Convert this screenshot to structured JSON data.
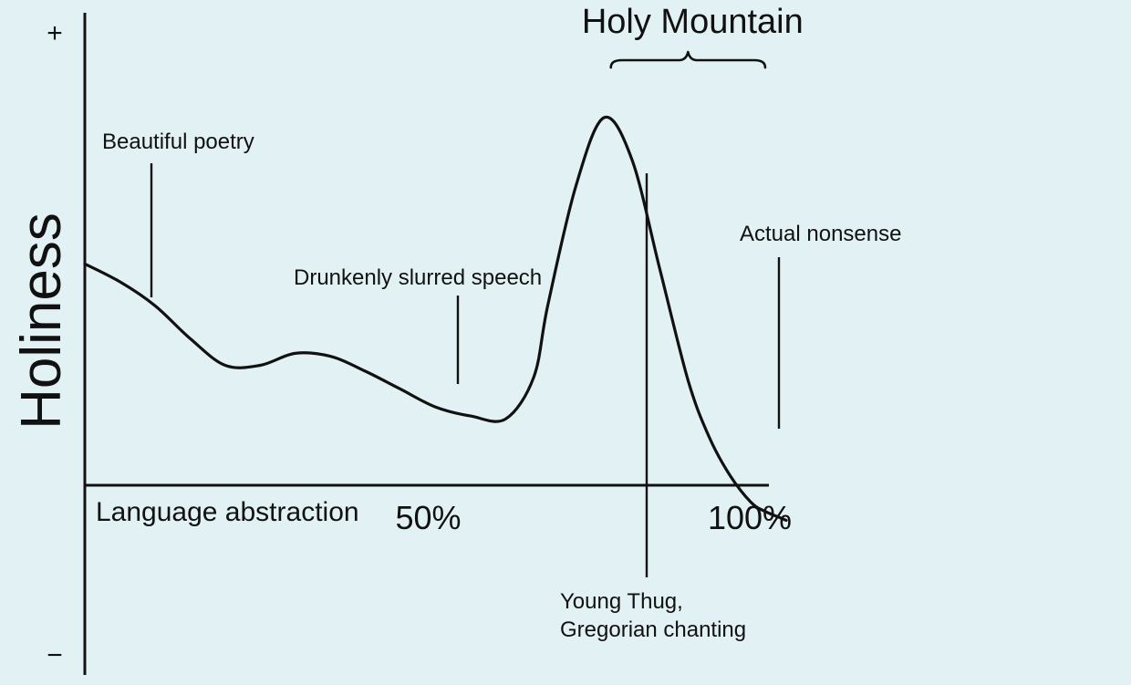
{
  "chart_data": {
    "type": "line",
    "title": "",
    "xlabel": "Language abstraction",
    "ylabel": "Holiness",
    "y_plus_label": "+",
    "y_minus_label": "−",
    "xlim": [
      0,
      100
    ],
    "ylim": [
      -100,
      100
    ],
    "x_ticks": [
      {
        "value": 50,
        "label": "50%"
      },
      {
        "value": 100,
        "label": "100%"
      }
    ],
    "grid": false,
    "series": [
      {
        "x": [
          0,
          5,
          10,
          15,
          20,
          25,
          30,
          35,
          40,
          45,
          50,
          55,
          60,
          64,
          66,
          70,
          74,
          78,
          82,
          86,
          89,
          92,
          95,
          97,
          99,
          100
        ],
        "y": [
          36,
          30,
          22,
          11,
          2,
          2,
          6,
          5,
          0,
          -6,
          -12,
          -15,
          -16,
          -2,
          22,
          62,
          85,
          71,
          34,
          -3,
          -22,
          -35,
          -44,
          -47,
          -49,
          -50
        ]
      }
    ],
    "annotations": [
      {
        "label": "Beautiful poetry",
        "x": 10
      },
      {
        "label": "Drunkenly slurred speech",
        "x": 54
      },
      {
        "label": "Young Thug,\nGregorian chanting",
        "x": 82
      },
      {
        "label": "Actual nonsense",
        "x": 100
      }
    ],
    "bracket": {
      "label": "Holy Mountain",
      "x_range": [
        75,
        97
      ]
    }
  }
}
